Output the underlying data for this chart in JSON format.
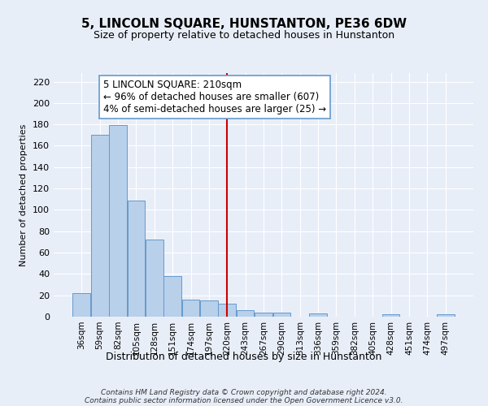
{
  "title": "5, LINCOLN SQUARE, HUNSTANTON, PE36 6DW",
  "subtitle": "Size of property relative to detached houses in Hunstanton",
  "xlabel": "Distribution of detached houses by size in Hunstanton",
  "ylabel": "Number of detached properties",
  "bar_labels": [
    "36sqm",
    "59sqm",
    "82sqm",
    "105sqm",
    "128sqm",
    "151sqm",
    "174sqm",
    "197sqm",
    "220sqm",
    "243sqm",
    "267sqm",
    "290sqm",
    "313sqm",
    "336sqm",
    "359sqm",
    "382sqm",
    "405sqm",
    "428sqm",
    "451sqm",
    "474sqm",
    "497sqm"
  ],
  "bar_values": [
    22,
    170,
    179,
    109,
    72,
    38,
    16,
    15,
    12,
    6,
    4,
    4,
    0,
    3,
    0,
    0,
    0,
    2,
    0,
    0,
    2
  ],
  "bar_color": "#b8d0ea",
  "bar_edge_color": "#6699cc",
  "vline_x": 8,
  "vline_color": "#cc0000",
  "annotation_title": "5 LINCOLN SQUARE: 210sqm",
  "annotation_line1": "← 96% of detached houses are smaller (607)",
  "annotation_line2": "4% of semi-detached houses are larger (25) →",
  "annotation_box_facecolor": "#ffffff",
  "annotation_box_edgecolor": "#6699cc",
  "ylim": [
    0,
    228
  ],
  "yticks": [
    0,
    20,
    40,
    60,
    80,
    100,
    120,
    140,
    160,
    180,
    200,
    220
  ],
  "footer1": "Contains HM Land Registry data © Crown copyright and database right 2024.",
  "footer2": "Contains public sector information licensed under the Open Government Licence v3.0.",
  "bg_color": "#e8eef8",
  "plot_bg_color": "#e8eef8",
  "title_fontsize": 11,
  "subtitle_fontsize": 9,
  "ylabel_fontsize": 8,
  "xlabel_fontsize": 9,
  "tick_fontsize": 8,
  "xtick_fontsize": 7.5,
  "annotation_fontsize": 8.5,
  "footer_fontsize": 6.5
}
